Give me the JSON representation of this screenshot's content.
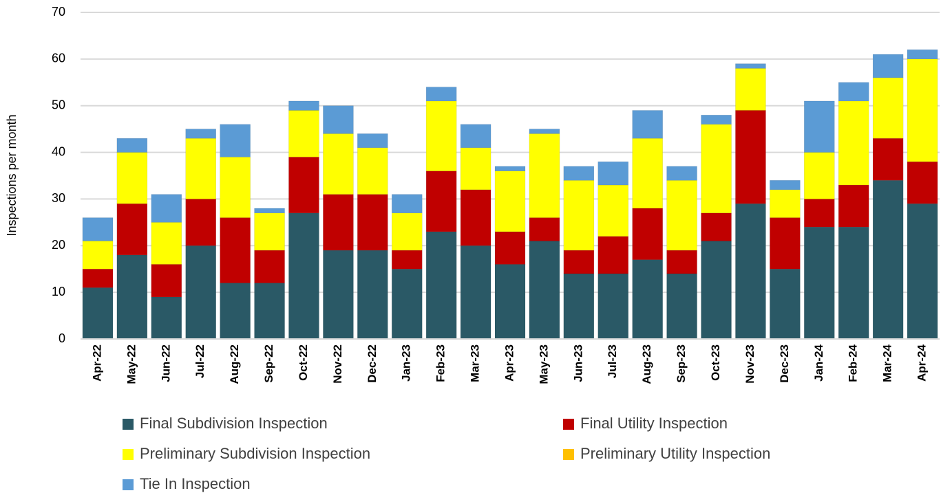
{
  "chart_data": {
    "type": "bar",
    "stacked": true,
    "y_label": "Inspections per month",
    "categories": [
      "Apr-22",
      "May-22",
      "Jun-22",
      "Jul-22",
      "Aug-22",
      "Sep-22",
      "Oct-22",
      "Nov-22",
      "Dec-22",
      "Jan-23",
      "Feb-23",
      "Mar-23",
      "Apr-23",
      "May-23",
      "Jun-23",
      "Jul-23",
      "Aug-23",
      "Sep-23",
      "Oct-23",
      "Nov-23",
      "Dec-23",
      "Jan-24",
      "Feb-24",
      "Mar-24",
      "Apr-24"
    ],
    "series": [
      {
        "name": "Final Subdivision Inspection",
        "color": "#2a5966",
        "values": [
          11,
          18,
          9,
          20,
          12,
          12,
          27,
          19,
          19,
          15,
          23,
          20,
          16,
          21,
          14,
          14,
          17,
          14,
          21,
          29,
          15,
          24,
          24,
          34,
          29
        ]
      },
      {
        "name": "Final Utility Inspection",
        "color": "#c00000",
        "values": [
          4,
          11,
          7,
          10,
          14,
          7,
          12,
          12,
          12,
          4,
          13,
          12,
          7,
          5,
          5,
          8,
          11,
          5,
          6,
          20,
          11,
          6,
          9,
          9,
          9
        ]
      },
      {
        "name": "Preliminary Subdivision Inspection",
        "color": "#ffff00",
        "values": [
          6,
          11,
          9,
          13,
          13,
          8,
          10,
          13,
          10,
          8,
          15,
          9,
          13,
          18,
          15,
          11,
          15,
          15,
          19,
          9,
          6,
          10,
          18,
          13,
          22
        ]
      },
      {
        "name": "Preliminary Utility Inspection",
        "color": "#ffc000",
        "values": [
          0,
          0,
          0,
          0,
          0,
          0,
          0,
          0,
          0,
          0,
          0,
          0,
          0,
          0,
          0,
          0,
          0,
          0,
          0,
          0,
          0,
          0,
          0,
          0,
          0
        ]
      },
      {
        "name": "Tie In Inspection",
        "color": "#5b9bd5",
        "values": [
          5,
          3,
          6,
          2,
          7,
          1,
          2,
          6,
          3,
          4,
          3,
          5,
          1,
          1,
          3,
          5,
          6,
          3,
          2,
          1,
          2,
          11,
          4,
          5,
          2
        ]
      }
    ],
    "ylim": [
      0,
      70
    ],
    "yticks": [
      0,
      10,
      20,
      30,
      40,
      50,
      60,
      70
    ],
    "grid": true
  }
}
